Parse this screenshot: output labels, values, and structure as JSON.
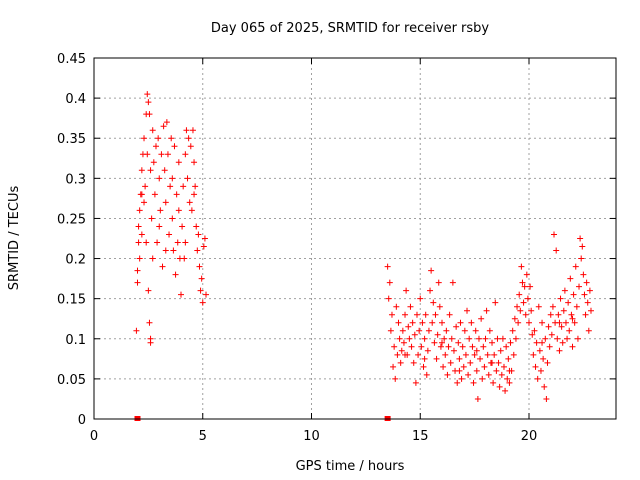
{
  "chart_data": {
    "type": "scatter",
    "title": "Day 065 of 2025, SRMTID for receiver rsby",
    "xlabel": "GPS time / hours",
    "ylabel": "SRMTID / TECUs",
    "xlim": [
      0,
      24
    ],
    "ylim": [
      0,
      0.45
    ],
    "xticks": [
      0,
      5,
      10,
      15,
      20
    ],
    "xtick_labels": [
      "0",
      "5",
      "10",
      "15",
      "20"
    ],
    "yticks": [
      0,
      0.05,
      0.1,
      0.15,
      0.2,
      0.25,
      0.3,
      0.35,
      0.4,
      0.45
    ],
    "ytick_labels": [
      "0",
      "0.05",
      "0.1",
      "0.15",
      "0.2",
      "0.25",
      "0.3",
      "0.35",
      "0.4",
      "0.45"
    ],
    "grid": true,
    "marker": "plus",
    "series": [
      {
        "name": "SRMTID",
        "color": "#ff0000",
        "points": [
          [
            1.95,
            0.11
          ],
          [
            2.0,
            0.17
          ],
          [
            2.0,
            0.185
          ],
          [
            2.05,
            0.24
          ],
          [
            2.05,
            0.22
          ],
          [
            2.1,
            0.26
          ],
          [
            2.1,
            0.2
          ],
          [
            2.15,
            0.28
          ],
          [
            2.2,
            0.31
          ],
          [
            2.2,
            0.23
          ],
          [
            2.25,
            0.33
          ],
          [
            2.3,
            0.35
          ],
          [
            2.3,
            0.27
          ],
          [
            2.35,
            0.29
          ],
          [
            2.4,
            0.38
          ],
          [
            2.4,
            0.22
          ],
          [
            2.45,
            0.405
          ],
          [
            2.45,
            0.33
          ],
          [
            2.5,
            0.395
          ],
          [
            2.5,
            0.16
          ],
          [
            2.55,
            0.38
          ],
          [
            2.55,
            0.12
          ],
          [
            2.6,
            0.1
          ],
          [
            2.6,
            0.095
          ],
          [
            2.65,
            0.25
          ],
          [
            2.7,
            0.36
          ],
          [
            2.7,
            0.2
          ],
          [
            2.75,
            0.32
          ],
          [
            2.8,
            0.28
          ],
          [
            2.85,
            0.34
          ],
          [
            2.9,
            0.22
          ],
          [
            2.95,
            0.35
          ],
          [
            3.0,
            0.3
          ],
          [
            3.05,
            0.26
          ],
          [
            3.1,
            0.33
          ],
          [
            3.15,
            0.19
          ],
          [
            3.2,
            0.365
          ],
          [
            3.25,
            0.31
          ],
          [
            3.3,
            0.27
          ],
          [
            3.35,
            0.37
          ],
          [
            3.4,
            0.33
          ],
          [
            3.45,
            0.23
          ],
          [
            3.5,
            0.29
          ],
          [
            3.55,
            0.35
          ],
          [
            3.6,
            0.25
          ],
          [
            3.65,
            0.21
          ],
          [
            3.7,
            0.34
          ],
          [
            3.75,
            0.18
          ],
          [
            3.8,
            0.28
          ],
          [
            3.85,
            0.22
          ],
          [
            3.9,
            0.32
          ],
          [
            3.95,
            0.2
          ],
          [
            4.0,
            0.155
          ],
          [
            4.05,
            0.24
          ],
          [
            4.1,
            0.29
          ],
          [
            4.15,
            0.2
          ],
          [
            4.2,
            0.33
          ],
          [
            4.25,
            0.36
          ],
          [
            4.3,
            0.3
          ],
          [
            4.35,
            0.35
          ],
          [
            4.4,
            0.27
          ],
          [
            4.45,
            0.34
          ],
          [
            4.5,
            0.26
          ],
          [
            4.55,
            0.36
          ],
          [
            4.6,
            0.32
          ],
          [
            4.65,
            0.29
          ],
          [
            4.7,
            0.24
          ],
          [
            4.75,
            0.21
          ],
          [
            4.8,
            0.23
          ],
          [
            4.85,
            0.19
          ],
          [
            4.9,
            0.16
          ],
          [
            4.95,
            0.175
          ],
          [
            5.0,
            0.145
          ],
          [
            5.05,
            0.215
          ],
          [
            5.1,
            0.225
          ],
          [
            5.15,
            0.155
          ],
          [
            2.2,
            0.28
          ],
          [
            2.6,
            0.31
          ],
          [
            3.0,
            0.24
          ],
          [
            3.3,
            0.21
          ],
          [
            3.6,
            0.3
          ],
          [
            3.9,
            0.26
          ],
          [
            4.2,
            0.22
          ],
          [
            4.6,
            0.28
          ],
          [
            13.5,
            0.19
          ],
          [
            13.55,
            0.15
          ],
          [
            13.6,
            0.17
          ],
          [
            13.65,
            0.11
          ],
          [
            13.7,
            0.13
          ],
          [
            13.75,
            0.065
          ],
          [
            13.8,
            0.09
          ],
          [
            13.85,
            0.05
          ],
          [
            13.9,
            0.14
          ],
          [
            13.95,
            0.08
          ],
          [
            14.0,
            0.12
          ],
          [
            14.05,
            0.1
          ],
          [
            14.1,
            0.07
          ],
          [
            14.15,
            0.085
          ],
          [
            14.2,
            0.11
          ],
          [
            14.25,
            0.095
          ],
          [
            14.3,
            0.13
          ],
          [
            14.35,
            0.16
          ],
          [
            14.4,
            0.08
          ],
          [
            14.45,
            0.115
          ],
          [
            14.5,
            0.1
          ],
          [
            14.55,
            0.14
          ],
          [
            14.6,
            0.09
          ],
          [
            14.65,
            0.12
          ],
          [
            14.7,
            0.07
          ],
          [
            14.75,
            0.105
          ],
          [
            14.8,
            0.045
          ],
          [
            14.85,
            0.13
          ],
          [
            14.9,
            0.08
          ],
          [
            14.95,
            0.11
          ],
          [
            15.0,
            0.15
          ],
          [
            15.05,
            0.09
          ],
          [
            15.1,
            0.12
          ],
          [
            15.15,
            0.065
          ],
          [
            15.2,
            0.1
          ],
          [
            15.25,
            0.13
          ],
          [
            15.3,
            0.055
          ],
          [
            15.35,
            0.085
          ],
          [
            15.4,
            0.11
          ],
          [
            15.45,
            0.16
          ],
          [
            15.5,
            0.185
          ],
          [
            15.55,
            0.12
          ],
          [
            15.6,
            0.145
          ],
          [
            15.65,
            0.095
          ],
          [
            15.7,
            0.13
          ],
          [
            15.75,
            0.075
          ],
          [
            15.8,
            0.105
          ],
          [
            15.85,
            0.17
          ],
          [
            15.9,
            0.14
          ],
          [
            15.95,
            0.09
          ],
          [
            16.0,
            0.12
          ],
          [
            16.05,
            0.065
          ],
          [
            16.1,
            0.1
          ],
          [
            16.15,
            0.08
          ],
          [
            16.2,
            0.11
          ],
          [
            16.25,
            0.055
          ],
          [
            16.3,
            0.09
          ],
          [
            16.35,
            0.13
          ],
          [
            16.4,
            0.07
          ],
          [
            16.45,
            0.1
          ],
          [
            16.5,
            0.17
          ],
          [
            16.55,
            0.085
          ],
          [
            16.6,
            0.06
          ],
          [
            16.65,
            0.115
          ],
          [
            16.7,
            0.045
          ],
          [
            16.75,
            0.095
          ],
          [
            16.8,
            0.075
          ],
          [
            16.85,
            0.12
          ],
          [
            16.9,
            0.05
          ],
          [
            16.95,
            0.09
          ],
          [
            17.0,
            0.065
          ],
          [
            17.05,
            0.11
          ],
          [
            17.1,
            0.08
          ],
          [
            17.15,
            0.135
          ],
          [
            17.2,
            0.055
          ],
          [
            17.25,
            0.1
          ],
          [
            17.3,
            0.07
          ],
          [
            17.35,
            0.12
          ],
          [
            17.4,
            0.09
          ],
          [
            17.45,
            0.045
          ],
          [
            17.5,
            0.08
          ],
          [
            17.55,
            0.11
          ],
          [
            17.6,
            0.06
          ],
          [
            17.65,
            0.025
          ],
          [
            17.7,
            0.1
          ],
          [
            17.75,
            0.075
          ],
          [
            17.8,
            0.125
          ],
          [
            17.85,
            0.05
          ],
          [
            17.9,
            0.09
          ],
          [
            17.95,
            0.065
          ],
          [
            18.0,
            0.1
          ],
          [
            18.05,
            0.135
          ],
          [
            18.1,
            0.08
          ],
          [
            18.15,
            0.055
          ],
          [
            18.2,
            0.11
          ],
          [
            18.25,
            0.07
          ],
          [
            18.3,
            0.095
          ],
          [
            18.35,
            0.045
          ],
          [
            18.4,
            0.08
          ],
          [
            18.45,
            0.145
          ],
          [
            18.5,
            0.06
          ],
          [
            18.55,
            0.1
          ],
          [
            18.6,
            0.07
          ],
          [
            18.65,
            0.04
          ],
          [
            18.7,
            0.085
          ],
          [
            18.75,
            0.055
          ],
          [
            18.8,
            0.1
          ],
          [
            18.85,
            0.065
          ],
          [
            18.9,
            0.035
          ],
          [
            18.95,
            0.09
          ],
          [
            19.0,
            0.05
          ],
          [
            19.05,
            0.075
          ],
          [
            19.1,
            0.045
          ],
          [
            19.15,
            0.095
          ],
          [
            19.2,
            0.06
          ],
          [
            19.25,
            0.11
          ],
          [
            19.3,
            0.08
          ],
          [
            19.35,
            0.125
          ],
          [
            19.4,
            0.1
          ],
          [
            19.45,
            0.14
          ],
          [
            19.5,
            0.12
          ],
          [
            19.55,
            0.155
          ],
          [
            19.6,
            0.135
          ],
          [
            19.65,
            0.19
          ],
          [
            19.7,
            0.17
          ],
          [
            19.75,
            0.145
          ],
          [
            19.8,
            0.165
          ],
          [
            19.85,
            0.13
          ],
          [
            19.9,
            0.18
          ],
          [
            19.95,
            0.15
          ],
          [
            20.0,
            0.12
          ],
          [
            20.05,
            0.165
          ],
          [
            20.1,
            0.135
          ],
          [
            20.15,
            0.105
          ],
          [
            20.2,
            0.08
          ],
          [
            20.25,
            0.11
          ],
          [
            20.3,
            0.065
          ],
          [
            20.35,
            0.095
          ],
          [
            20.4,
            0.05
          ],
          [
            20.45,
            0.14
          ],
          [
            20.5,
            0.085
          ],
          [
            20.55,
            0.06
          ],
          [
            20.6,
            0.12
          ],
          [
            20.65,
            0.075
          ],
          [
            20.7,
            0.04
          ],
          [
            20.75,
            0.1
          ],
          [
            20.8,
            0.025
          ],
          [
            20.85,
            0.07
          ],
          [
            20.9,
            0.115
          ],
          [
            20.95,
            0.09
          ],
          [
            21.0,
            0.13
          ],
          [
            21.05,
            0.105
          ],
          [
            21.1,
            0.14
          ],
          [
            21.15,
            0.23
          ],
          [
            21.2,
            0.12
          ],
          [
            21.25,
            0.21
          ],
          [
            21.3,
            0.1
          ],
          [
            21.35,
            0.13
          ],
          [
            21.4,
            0.085
          ],
          [
            21.45,
            0.15
          ],
          [
            21.5,
            0.115
          ],
          [
            21.55,
            0.095
          ],
          [
            21.6,
            0.135
          ],
          [
            21.65,
            0.16
          ],
          [
            21.7,
            0.12
          ],
          [
            21.75,
            0.1
          ],
          [
            21.8,
            0.145
          ],
          [
            21.85,
            0.11
          ],
          [
            21.9,
            0.175
          ],
          [
            21.95,
            0.13
          ],
          [
            22.0,
            0.09
          ],
          [
            22.05,
            0.155
          ],
          [
            22.1,
            0.12
          ],
          [
            22.15,
            0.19
          ],
          [
            22.2,
            0.14
          ],
          [
            22.25,
            0.1
          ],
          [
            22.3,
            0.165
          ],
          [
            22.35,
            0.225
          ],
          [
            22.4,
            0.2
          ],
          [
            22.45,
            0.215
          ],
          [
            22.5,
            0.18
          ],
          [
            22.55,
            0.155
          ],
          [
            22.6,
            0.13
          ],
          [
            22.65,
            0.17
          ],
          [
            22.7,
            0.145
          ],
          [
            22.75,
            0.11
          ],
          [
            22.8,
            0.16
          ],
          [
            22.85,
            0.135
          ],
          [
            14.3,
            0.08
          ],
          [
            15.2,
            0.075
          ],
          [
            16.0,
            0.095
          ],
          [
            16.8,
            0.06
          ],
          [
            17.6,
            0.085
          ],
          [
            18.3,
            0.07
          ],
          [
            19.1,
            0.06
          ],
          [
            20.6,
            0.095
          ],
          [
            21.4,
            0.12
          ],
          [
            22.0,
            0.125
          ]
        ]
      }
    ],
    "gap_markers": [
      {
        "x": 2.0,
        "y": 0
      },
      {
        "x": 13.5,
        "y": 0
      }
    ]
  }
}
